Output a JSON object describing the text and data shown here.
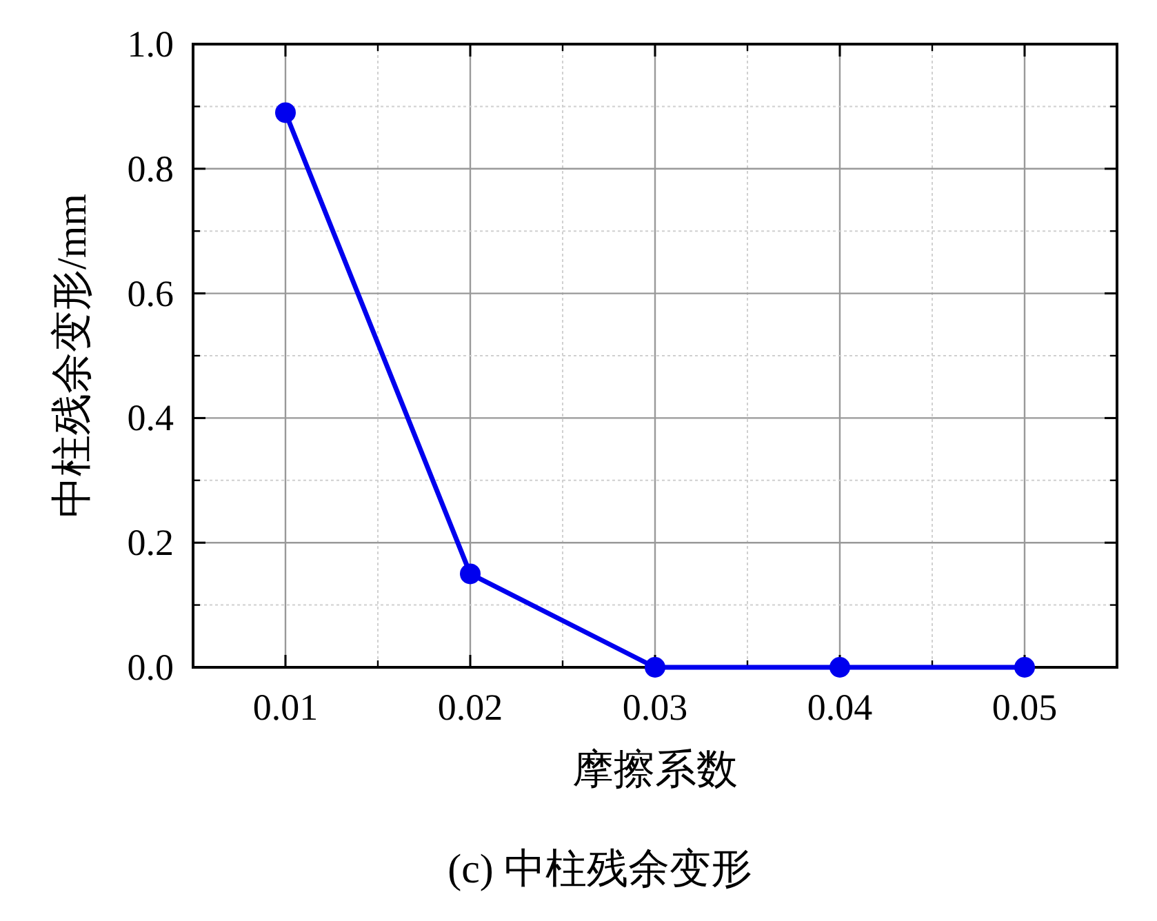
{
  "chart_data": {
    "type": "line",
    "xlabel": "摩擦系数",
    "ylabel": "中柱残余变形/mm",
    "annotations": [
      "(c)  中柱残余变形"
    ],
    "x": [
      0.01,
      0.02,
      0.03,
      0.04,
      0.05
    ],
    "series": [
      {
        "color": "#0000ee",
        "values": [
          0.89,
          0.15,
          0.0,
          0.0,
          0.0
        ]
      }
    ],
    "xlim": [
      0.005,
      0.055
    ],
    "xticks": [
      {
        "value": 0.01,
        "label": "0.01"
      },
      {
        "value": 0.02,
        "label": "0.02"
      },
      {
        "value": 0.03,
        "label": "0.03"
      },
      {
        "value": 0.04,
        "label": "0.04"
      },
      {
        "value": 0.05,
        "label": "0.05"
      }
    ],
    "ylim": [
      0,
      1
    ],
    "yticks": [
      {
        "value": 0,
        "label": "0.0"
      },
      {
        "value": 0.2,
        "label": "0.2"
      },
      {
        "value": 0.4,
        "label": "0.4"
      },
      {
        "value": 0.6,
        "label": "0.6"
      },
      {
        "value": 0.8,
        "label": "0.8"
      },
      {
        "value": 1,
        "label": "1.0"
      }
    ],
    "grid": true,
    "marker": "circle",
    "line_style": "solid"
  }
}
